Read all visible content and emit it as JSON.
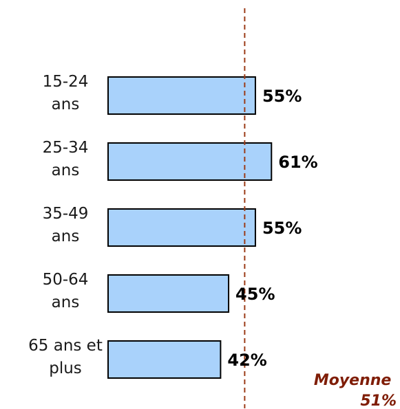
{
  "chart_data": {
    "type": "bar",
    "orientation": "horizontal",
    "categories": [
      "15-24 ans",
      "25-34 ans",
      "35-49 ans",
      "50-64 ans",
      "65 ans et plus"
    ],
    "category_lines": [
      [
        "15-24",
        "ans"
      ],
      [
        "25-34",
        "ans"
      ],
      [
        "35-49",
        "ans"
      ],
      [
        "50-64",
        "ans"
      ],
      [
        "65 ans et",
        "plus"
      ]
    ],
    "values": [
      55,
      61,
      55,
      45,
      42
    ],
    "value_labels": [
      "55%",
      "61%",
      "55%",
      "45%",
      "42%"
    ],
    "xlim": [
      0,
      100
    ],
    "grid": false,
    "reference_line": {
      "value": 51,
      "label_lines": [
        "Moyenne",
        "51%"
      ]
    },
    "colors": {
      "bar_fill": "#a9d2fb",
      "bar_stroke": "#000000",
      "reference": "#9b3b17",
      "reference_text": "#7f1d06"
    }
  }
}
